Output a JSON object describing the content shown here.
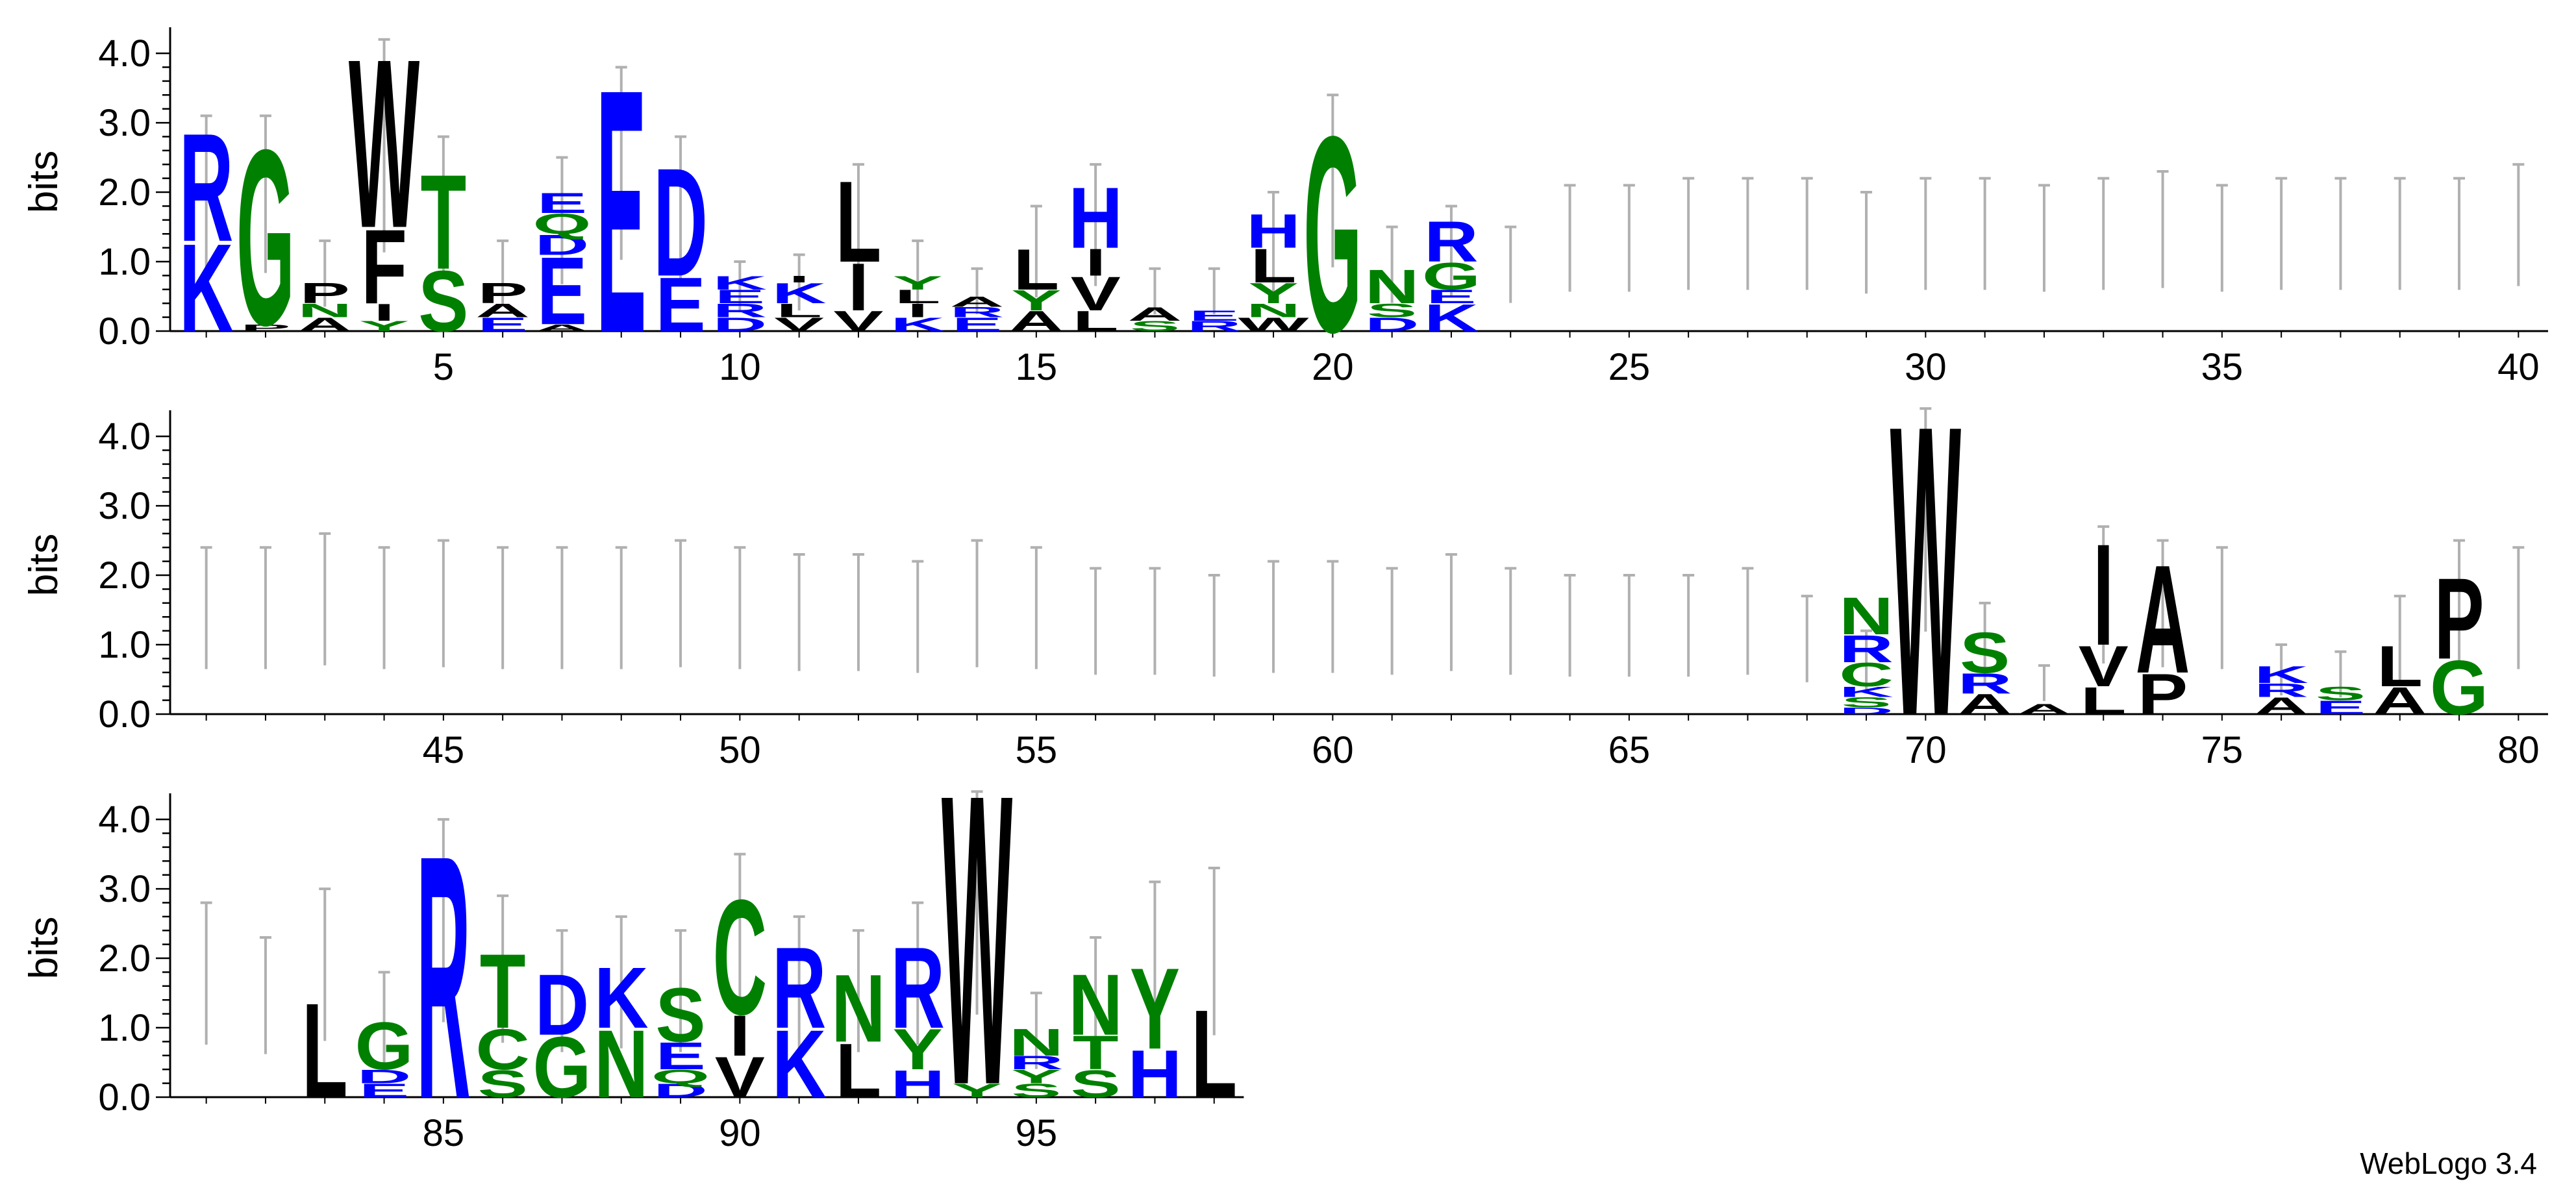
{
  "chart_data": {
    "type": "sequence-logo",
    "ylabel": "bits",
    "ylim": [
      0,
      4.3
    ],
    "y_ticks": [
      "0.0",
      "1.0",
      "2.0",
      "3.0",
      "4.0"
    ],
    "positions_per_row": 40,
    "colors": {
      "blue": "#0000ff",
      "green": "#008000",
      "black": "#000000",
      "errorbar": "#b0b0b0"
    },
    "x_ticks": [
      5,
      10,
      15,
      20,
      25,
      30,
      35,
      40,
      45,
      50,
      55,
      60,
      65,
      70,
      75,
      80,
      85,
      90,
      95
    ],
    "error_bar_tops": [
      3.1,
      3.1,
      1.3,
      4.2,
      2.8,
      1.3,
      2.5,
      3.8,
      2.8,
      1.0,
      1.1,
      2.4,
      1.3,
      0.9,
      1.8,
      2.4,
      0.9,
      0.9,
      2.0,
      3.4,
      1.5,
      1.8,
      1.5,
      2.1,
      2.1,
      2.2,
      2.2,
      2.2,
      2.0,
      2.2,
      2.2,
      2.1,
      2.2,
      2.3,
      2.1,
      2.2,
      2.2,
      2.2,
      2.2,
      2.4,
      2.4,
      2.4,
      2.6,
      2.4,
      2.5,
      2.4,
      2.4,
      2.4,
      2.5,
      2.4,
      2.3,
      2.3,
      2.2,
      2.5,
      2.4,
      2.1,
      2.1,
      2.0,
      2.2,
      2.2,
      2.1,
      2.3,
      2.1,
      2.0,
      2.0,
      2.0,
      2.1,
      1.7,
      1.2,
      4.4,
      1.6,
      0.7,
      2.7,
      2.5,
      2.4,
      1.0,
      0.9,
      1.7,
      2.5,
      2.4,
      2.8,
      2.3,
      3.0,
      1.8,
      4.0,
      2.9,
      2.4,
      2.6,
      2.4,
      3.5,
      2.6,
      2.4,
      2.8,
      4.4,
      1.5,
      2.3,
      3.1,
      3.3
    ],
    "stacks": [
      {
        "pos": 1,
        "letters": [
          {
            "c": "K",
            "h": 1.3
          },
          {
            "c": "R",
            "h": 1.6
          }
        ]
      },
      {
        "pos": 2,
        "letters": [
          {
            "c": "P",
            "h": 0.1
          },
          {
            "c": "G",
            "h": 2.6
          }
        ]
      },
      {
        "pos": 3,
        "letters": [
          {
            "c": "A",
            "h": 0.2
          },
          {
            "c": "N",
            "h": 0.2
          },
          {
            "c": "P",
            "h": 0.3
          }
        ]
      },
      {
        "pos": 4,
        "letters": [
          {
            "c": "Y",
            "h": 0.15
          },
          {
            "c": "I",
            "h": 0.25
          },
          {
            "c": "F",
            "h": 1.1
          },
          {
            "c": "W",
            "h": 2.5
          }
        ]
      },
      {
        "pos": 5,
        "letters": [
          {
            "c": "S",
            "h": 0.9
          },
          {
            "c": "T",
            "h": 1.4
          }
        ]
      },
      {
        "pos": 6,
        "letters": [
          {
            "c": "E",
            "h": 0.2
          },
          {
            "c": "A",
            "h": 0.2
          },
          {
            "c": "P",
            "h": 0.3
          }
        ]
      },
      {
        "pos": 7,
        "letters": [
          {
            "c": "A",
            "h": 0.1
          },
          {
            "c": "E",
            "h": 1.0
          },
          {
            "c": "D",
            "h": 0.3
          },
          {
            "c": "Q",
            "h": 0.3
          },
          {
            "c": "E",
            "h": 0.3
          }
        ]
      },
      {
        "pos": 8,
        "letters": [
          {
            "c": "E",
            "h": 3.6
          }
        ]
      },
      {
        "pos": 9,
        "letters": [
          {
            "c": "E",
            "h": 0.8
          },
          {
            "c": "D",
            "h": 1.6
          }
        ]
      },
      {
        "pos": 10,
        "letters": [
          {
            "c": "D",
            "h": 0.2
          },
          {
            "c": "R",
            "h": 0.2
          },
          {
            "c": "E",
            "h": 0.2
          },
          {
            "c": "K",
            "h": 0.2
          }
        ]
      },
      {
        "pos": 11,
        "letters": [
          {
            "c": "V",
            "h": 0.2
          },
          {
            "c": "L",
            "h": 0.2
          },
          {
            "c": "K",
            "h": 0.3
          },
          {
            "c": "I",
            "h": 0.1
          }
        ]
      },
      {
        "pos": 12,
        "letters": [
          {
            "c": "V",
            "h": 0.3
          },
          {
            "c": "I",
            "h": 0.7
          },
          {
            "c": "L",
            "h": 1.2
          }
        ]
      },
      {
        "pos": 13,
        "letters": [
          {
            "c": "K",
            "h": 0.2
          },
          {
            "c": "I",
            "h": 0.2
          },
          {
            "c": "L",
            "h": 0.2
          },
          {
            "c": "Y",
            "h": 0.2
          }
        ]
      },
      {
        "pos": 14,
        "letters": [
          {
            "c": "E",
            "h": 0.2
          },
          {
            "c": "R",
            "h": 0.15
          },
          {
            "c": "A",
            "h": 0.15
          }
        ]
      },
      {
        "pos": 15,
        "letters": [
          {
            "c": "A",
            "h": 0.3
          },
          {
            "c": "Y",
            "h": 0.3
          },
          {
            "c": "L",
            "h": 0.6
          }
        ]
      },
      {
        "pos": 16,
        "letters": [
          {
            "c": "L",
            "h": 0.3
          },
          {
            "c": "V",
            "h": 0.5
          },
          {
            "c": "I",
            "h": 0.4
          },
          {
            "c": "H",
            "h": 0.9
          }
        ]
      },
      {
        "pos": 17,
        "letters": [
          {
            "c": "S",
            "h": 0.15
          },
          {
            "c": "A",
            "h": 0.2
          }
        ]
      },
      {
        "pos": 18,
        "letters": [
          {
            "c": "R",
            "h": 0.15
          },
          {
            "c": "E",
            "h": 0.15
          }
        ]
      },
      {
        "pos": 19,
        "letters": [
          {
            "c": "W",
            "h": 0.2
          },
          {
            "c": "N",
            "h": 0.2
          },
          {
            "c": "Y",
            "h": 0.3
          },
          {
            "c": "L",
            "h": 0.5
          },
          {
            "c": "H",
            "h": 0.5
          }
        ]
      },
      {
        "pos": 20,
        "letters": [
          {
            "c": "G",
            "h": 2.9
          }
        ]
      },
      {
        "pos": 21,
        "letters": [
          {
            "c": "D",
            "h": 0.2
          },
          {
            "c": "S",
            "h": 0.2
          },
          {
            "c": "N",
            "h": 0.5
          }
        ]
      },
      {
        "pos": 22,
        "letters": [
          {
            "c": "K",
            "h": 0.4
          },
          {
            "c": "E",
            "h": 0.2
          },
          {
            "c": "G",
            "h": 0.4
          },
          {
            "c": "R",
            "h": 0.6
          }
        ]
      },
      {
        "pos": 69,
        "letters": [
          {
            "c": "D",
            "h": 0.1
          },
          {
            "c": "S",
            "h": 0.15
          },
          {
            "c": "K",
            "h": 0.15
          },
          {
            "c": "C",
            "h": 0.35
          },
          {
            "c": "R",
            "h": 0.4
          },
          {
            "c": "N",
            "h": 0.55
          }
        ]
      },
      {
        "pos": 70,
        "letters": [
          {
            "c": "W",
            "h": 4.3
          }
        ]
      },
      {
        "pos": 71,
        "letters": [
          {
            "c": "A",
            "h": 0.3
          },
          {
            "c": "R",
            "h": 0.3
          },
          {
            "c": "S",
            "h": 0.6
          }
        ]
      },
      {
        "pos": 72,
        "letters": [
          {
            "c": "A",
            "h": 0.15
          }
        ]
      },
      {
        "pos": 73,
        "letters": [
          {
            "c": "L",
            "h": 0.4
          },
          {
            "c": "V",
            "h": 0.6
          },
          {
            "c": "I",
            "h": 1.5
          }
        ]
      },
      {
        "pos": 74,
        "letters": [
          {
            "c": "P",
            "h": 0.6
          },
          {
            "c": "A",
            "h": 1.6
          }
        ]
      },
      {
        "pos": 76,
        "letters": [
          {
            "c": "A",
            "h": 0.25
          },
          {
            "c": "R",
            "h": 0.2
          },
          {
            "c": "K",
            "h": 0.25
          }
        ]
      },
      {
        "pos": 77,
        "letters": [
          {
            "c": "E",
            "h": 0.2
          },
          {
            "c": "S",
            "h": 0.2
          }
        ]
      },
      {
        "pos": 78,
        "letters": [
          {
            "c": "A",
            "h": 0.4
          },
          {
            "c": "L",
            "h": 0.6
          }
        ]
      },
      {
        "pos": 79,
        "letters": [
          {
            "c": "G",
            "h": 0.8
          },
          {
            "c": "P",
            "h": 1.2
          }
        ]
      },
      {
        "pos": 83,
        "letters": [
          {
            "c": "L",
            "h": 1.4
          }
        ]
      },
      {
        "pos": 84,
        "letters": [
          {
            "c": "E",
            "h": 0.2
          },
          {
            "c": "D",
            "h": 0.2
          },
          {
            "c": "G",
            "h": 0.7
          }
        ]
      },
      {
        "pos": 85,
        "letters": [
          {
            "c": "R",
            "h": 3.6
          }
        ]
      },
      {
        "pos": 86,
        "letters": [
          {
            "c": "S",
            "h": 0.4
          },
          {
            "c": "C",
            "h": 0.6
          },
          {
            "c": "T",
            "h": 1.1
          }
        ]
      },
      {
        "pos": 87,
        "letters": [
          {
            "c": "G",
            "h": 0.9
          },
          {
            "c": "D",
            "h": 0.9
          }
        ]
      },
      {
        "pos": 88,
        "letters": [
          {
            "c": "N",
            "h": 1.0
          },
          {
            "c": "K",
            "h": 0.9
          }
        ]
      },
      {
        "pos": 89,
        "letters": [
          {
            "c": "D",
            "h": 0.2
          },
          {
            "c": "Q",
            "h": 0.2
          },
          {
            "c": "E",
            "h": 0.4
          },
          {
            "c": "S",
            "h": 0.8
          }
        ]
      },
      {
        "pos": 90,
        "letters": [
          {
            "c": "V",
            "h": 0.6
          },
          {
            "c": "I",
            "h": 0.6
          },
          {
            "c": "C",
            "h": 1.7
          }
        ]
      },
      {
        "pos": 91,
        "letters": [
          {
            "c": "K",
            "h": 1.0
          },
          {
            "c": "R",
            "h": 1.2
          }
        ]
      },
      {
        "pos": 92,
        "letters": [
          {
            "c": "L",
            "h": 0.8
          },
          {
            "c": "N",
            "h": 1.0
          }
        ]
      },
      {
        "pos": 93,
        "letters": [
          {
            "c": "H",
            "h": 0.4
          },
          {
            "c": "Y",
            "h": 0.6
          },
          {
            "c": "R",
            "h": 1.2
          }
        ]
      },
      {
        "pos": 94,
        "letters": [
          {
            "c": "Y",
            "h": 0.2
          },
          {
            "c": "W",
            "h": 4.3
          }
        ]
      },
      {
        "pos": 95,
        "letters": [
          {
            "c": "S",
            "h": 0.2
          },
          {
            "c": "Y",
            "h": 0.2
          },
          {
            "c": "R",
            "h": 0.2
          },
          {
            "c": "N",
            "h": 0.4
          }
        ]
      },
      {
        "pos": 96,
        "letters": [
          {
            "c": "S",
            "h": 0.4
          },
          {
            "c": "T",
            "h": 0.5
          },
          {
            "c": "N",
            "h": 0.9
          }
        ]
      },
      {
        "pos": 97,
        "letters": [
          {
            "c": "H",
            "h": 0.7
          },
          {
            "c": "Y",
            "h": 1.2
          }
        ]
      },
      {
        "pos": 98,
        "letters": [
          {
            "c": "L",
            "h": 1.3
          }
        ]
      }
    ]
  },
  "footer": {
    "credit": "WebLogo 3.4"
  }
}
